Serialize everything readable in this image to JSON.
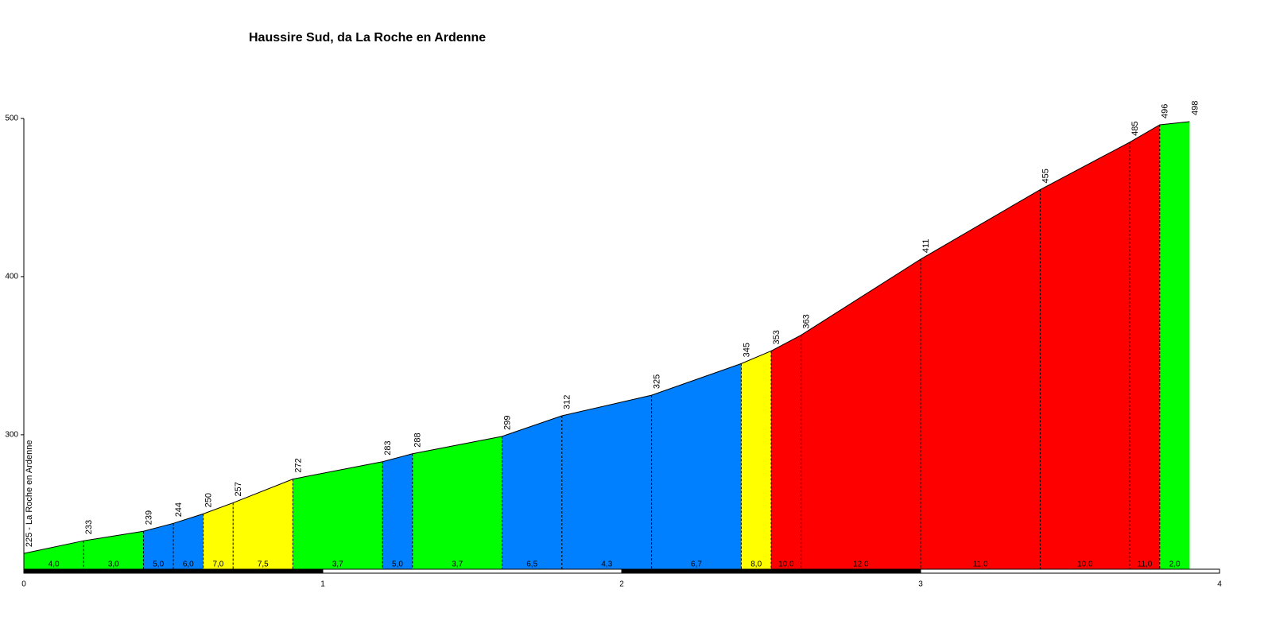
{
  "chart_data": {
    "type": "elevation-profile",
    "title": "Haussire Sud, da La Roche en Ardenne",
    "start_label": "225 - La Roche en Ardenne",
    "x": [
      0,
      0.2,
      0.4,
      0.5,
      0.6,
      0.7,
      0.9,
      1.2,
      1.3,
      1.6,
      1.8,
      2.1,
      2.4,
      2.5,
      2.6,
      3.0,
      3.4,
      3.7,
      3.8,
      3.9
    ],
    "elevations": [
      225,
      233,
      239,
      244,
      250,
      257,
      272,
      283,
      288,
      299,
      312,
      325,
      345,
      353,
      363,
      411,
      455,
      485,
      496,
      498
    ],
    "gradients": {
      "values": [
        4.0,
        3.0,
        5.0,
        6.0,
        7.0,
        7.5,
        3.7,
        5.0,
        3.7,
        6.5,
        4.3,
        6.7,
        8.0,
        10.0,
        12.0,
        11.0,
        10.0,
        11.0,
        2.0
      ],
      "value_labels": [
        "4,0",
        "3,0",
        "5,0",
        "6,0",
        "7,0",
        "7,5",
        "3,7",
        "5,0",
        "3,7",
        "6,5",
        "4,3",
        "6,7",
        "8,0",
        "10,0",
        "12,0",
        "11,0",
        "10,0",
        "11,0",
        "2,0"
      ],
      "colors": [
        "#00ff00",
        "#00ff00",
        "#0080ff",
        "#0080ff",
        "#ffff00",
        "#ffff00",
        "#00ff00",
        "#0080ff",
        "#00ff00",
        "#0080ff",
        "#0080ff",
        "#0080ff",
        "#ffff00",
        "#ff0000",
        "#ff0000",
        "#ff0000",
        "#ff0000",
        "#ff0000",
        "#00ff00"
      ]
    },
    "xlim": [
      0,
      4
    ],
    "xticks": [
      0,
      1,
      2,
      3,
      4
    ],
    "ylim": [
      215,
      500
    ],
    "yticks": [
      300,
      400,
      500
    ]
  }
}
